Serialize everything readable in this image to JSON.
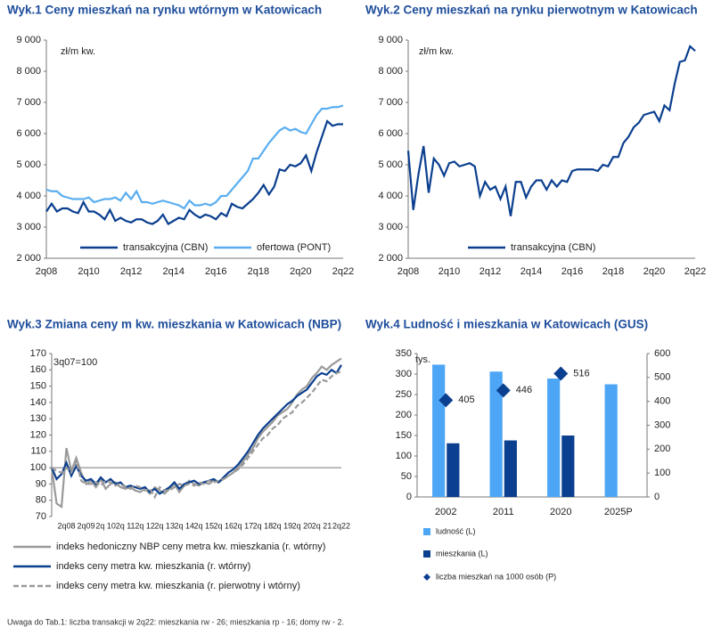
{
  "chart_data": [
    {
      "type": "line",
      "title": "Wyk.1 Ceny mieszkań na rynku wtórnym w Katowicach",
      "annotations": [
        "zł/m kw."
      ],
      "categories": [
        "2q08",
        null,
        null,
        null,
        null,
        null,
        null,
        null,
        "2q10",
        null,
        null,
        null,
        null,
        null,
        null,
        null,
        "2q12",
        null,
        null,
        null,
        null,
        null,
        null,
        null,
        "2q14",
        null,
        null,
        null,
        null,
        null,
        null,
        null,
        "2q16",
        null,
        null,
        null,
        null,
        null,
        null,
        null,
        "2q18",
        null,
        null,
        null,
        null,
        null,
        null,
        null,
        "2q20",
        null,
        null,
        null,
        null,
        null,
        null,
        null,
        "2q22"
      ],
      "series": [
        {
          "name": "transakcyjna (CBN)",
          "color": "#0b3f8f",
          "values": [
            3500,
            3750,
            3500,
            3600,
            3600,
            3500,
            3450,
            3800,
            3500,
            3500,
            3400,
            3250,
            3550,
            3200,
            3300,
            3200,
            3150,
            3250,
            3250,
            3150,
            3100,
            3200,
            3400,
            3100,
            3200,
            3300,
            3250,
            3550,
            3400,
            3300,
            3400,
            3350,
            3250,
            3450,
            3350,
            3750,
            3650,
            3600,
            3750,
            3900,
            4100,
            4350,
            4050,
            4300,
            4850,
            4800,
            5000,
            4950,
            5050,
            5300,
            4800,
            5400,
            5900,
            6400,
            6250,
            6300,
            6300
          ]
        },
        {
          "name": "ofertowa (PONT)",
          "color": "#5aaef0",
          "values": [
            4200,
            4150,
            4150,
            4000,
            3950,
            3900,
            3900,
            3900,
            3950,
            3800,
            3850,
            3900,
            3900,
            3950,
            3850,
            4100,
            3900,
            4150,
            3800,
            3800,
            3750,
            3800,
            3850,
            3800,
            3750,
            3700,
            3600,
            3850,
            3700,
            3700,
            3750,
            3700,
            3800,
            4000,
            4000,
            4200,
            4400,
            4600,
            4800,
            5200,
            5200,
            5450,
            5700,
            5900,
            6100,
            6200,
            6100,
            6150,
            6050,
            6000,
            6300,
            6600,
            6800,
            6800,
            6850,
            6850,
            6900
          ]
        }
      ],
      "ylim": [
        2000,
        9000
      ],
      "yticks": [
        {
          "value": 2000,
          "label": "2 000"
        },
        {
          "value": 3000,
          "label": "3 000"
        },
        {
          "value": 4000,
          "label": "4 000"
        },
        {
          "value": 5000,
          "label": "5 000"
        },
        {
          "value": 6000,
          "label": "6 000"
        },
        {
          "value": 7000,
          "label": "7 000"
        },
        {
          "value": 8000,
          "label": "8 000"
        },
        {
          "value": 9000,
          "label": "9 000"
        }
      ],
      "grid": false,
      "legend": "lower center"
    },
    {
      "type": "line",
      "title": "Wyk.2 Ceny mieszkań na rynku pierwotnym w Katowicach",
      "annotations": [
        "zł/m kw."
      ],
      "categories": [
        "2q08",
        null,
        null,
        null,
        null,
        null,
        null,
        null,
        "2q10",
        null,
        null,
        null,
        null,
        null,
        null,
        null,
        "2q12",
        null,
        null,
        null,
        null,
        null,
        null,
        null,
        "2q14",
        null,
        null,
        null,
        null,
        null,
        null,
        null,
        "2q16",
        null,
        null,
        null,
        null,
        null,
        null,
        null,
        "2q18",
        null,
        null,
        null,
        null,
        null,
        null,
        null,
        "2q20",
        null,
        null,
        null,
        null,
        null,
        null,
        null,
        "2q22"
      ],
      "series": [
        {
          "name": "transakcyjna (CBN)",
          "color": "#0b3f8f",
          "values": [
            5450,
            3550,
            4700,
            5600,
            4100,
            5200,
            5000,
            4650,
            5050,
            5100,
            4950,
            5000,
            5050,
            4950,
            4000,
            4450,
            4200,
            4300,
            3900,
            4300,
            3350,
            4450,
            4450,
            3950,
            4300,
            4500,
            4500,
            4200,
            4500,
            4300,
            4500,
            4450,
            4800,
            4850,
            4850,
            4850,
            4850,
            4800,
            5000,
            4950,
            5250,
            5250,
            5700,
            5900,
            6200,
            6350,
            6600,
            6650,
            6700,
            6400,
            6900,
            6750,
            7600,
            8300,
            8350,
            8800,
            8650
          ]
        }
      ],
      "ylim": [
        2000,
        9000
      ],
      "yticks": [
        {
          "value": 2000,
          "label": "2 000"
        },
        {
          "value": 3000,
          "label": "3 000"
        },
        {
          "value": 4000,
          "label": "4 000"
        },
        {
          "value": 5000,
          "label": "5 000"
        },
        {
          "value": 6000,
          "label": "6 000"
        },
        {
          "value": 7000,
          "label": "7 000"
        },
        {
          "value": 8000,
          "label": "8 000"
        },
        {
          "value": 9000,
          "label": "9 000"
        }
      ],
      "grid": false,
      "legend": "lower center"
    },
    {
      "type": "line",
      "title": "Wyk.3 Zmiana ceny m kw. mieszkania w Katowicach (NBP)",
      "annotations": [
        "3q07=100"
      ],
      "categories": [
        null,
        null,
        null,
        "2q08",
        null,
        null,
        null,
        "2q09",
        null,
        null,
        null,
        "2q 10",
        null,
        null,
        null,
        "2q 11",
        null,
        null,
        null,
        "2q 12",
        null,
        null,
        null,
        "2q 13",
        null,
        null,
        null,
        "2q 14",
        null,
        null,
        null,
        "2q 15",
        null,
        null,
        null,
        "2q 16",
        null,
        null,
        null,
        "2q 17",
        null,
        null,
        null,
        "2q 18",
        null,
        null,
        null,
        "2q 19",
        null,
        null,
        null,
        "2q 20",
        null,
        null,
        null,
        "2q 21",
        null,
        null,
        null,
        "2q22"
      ],
      "series": [
        {
          "name": "indeks hedoniczny NBP ceny metra kw. mieszkania (r. wtórny)",
          "color": "#9a9a9a",
          "style": "solid",
          "values": [
            100,
            78,
            76,
            112,
            98,
            106,
            97,
            90,
            92,
            88,
            93,
            87,
            90,
            91,
            88,
            87,
            88,
            86,
            85,
            87,
            84,
            88,
            86,
            84,
            87,
            90,
            85,
            89,
            92,
            90,
            89,
            91,
            90,
            92,
            91,
            93,
            95,
            97,
            100,
            104,
            108,
            112,
            118,
            122,
            125,
            128,
            132,
            134,
            136,
            140,
            145,
            148,
            150,
            155,
            158,
            162,
            160,
            163,
            165,
            167
          ]
        },
        {
          "name": "indeks ceny metra kw. mieszkania (r. wtórny)",
          "color": "#0b3f8f",
          "style": "solid",
          "values": [
            100,
            93,
            96,
            103,
            95,
            101,
            95,
            92,
            93,
            90,
            94,
            91,
            93,
            90,
            91,
            88,
            89,
            88,
            87,
            88,
            85,
            87,
            84,
            86,
            88,
            91,
            87,
            90,
            91,
            92,
            90,
            91,
            92,
            93,
            91,
            94,
            97,
            99,
            102,
            106,
            110,
            115,
            120,
            124,
            127,
            130,
            133,
            136,
            139,
            141,
            144,
            146,
            148,
            152,
            156,
            158,
            157,
            160,
            158,
            163
          ]
        },
        {
          "name": "indeks ceny metra kw. mieszkania (r. pierwotny i wtórny)",
          "color": "#9a9a9a",
          "style": "dashed",
          "values": [
            100,
            98,
            97,
            100,
            97,
            104,
            92,
            90,
            90,
            91,
            89,
            92,
            91,
            89,
            90,
            88,
            87,
            89,
            88,
            86,
            87,
            82,
            88,
            86,
            86,
            88,
            90,
            89,
            90,
            89,
            91,
            90,
            92,
            91,
            92,
            93,
            95,
            97,
            99,
            102,
            106,
            110,
            114,
            118,
            120,
            124,
            126,
            130,
            132,
            134,
            138,
            140,
            143,
            146,
            150,
            154,
            153,
            156,
            158,
            159
          ]
        }
      ],
      "ylim": [
        70,
        170
      ],
      "yticks": [
        70,
        80,
        90,
        100,
        110,
        120,
        130,
        140,
        150,
        160,
        170
      ],
      "grid": false,
      "legend": "below"
    },
    {
      "type": "bar",
      "title": "Wyk.4 Ludność i mieszkania w Katowicach (GUS)",
      "annotations": [
        "tys."
      ],
      "categories": [
        "2002",
        "2011",
        "2020",
        "2025P"
      ],
      "series": [
        {
          "name": "ludność (L)",
          "color": "#4da6f5",
          "values": [
            323,
            306,
            289,
            275
          ]
        },
        {
          "name": "mieszkania (L)",
          "color": "#0b3f8f",
          "values": [
            131,
            138,
            150,
            null
          ]
        },
        {
          "name": "liczba mieszkań na 1000 osób (P)",
          "color": "#0b3f8f",
          "axis": "y2",
          "marker": "diamond",
          "values": [
            405,
            446,
            516,
            null
          ]
        }
      ],
      "ylim": [
        0,
        350
      ],
      "yticks": [
        0,
        50,
        100,
        150,
        200,
        250,
        300,
        350
      ],
      "y2lim": [
        0,
        600
      ],
      "y2ticks": [
        0,
        100,
        200,
        300,
        400,
        500,
        600
      ],
      "grid": false,
      "legend": "below"
    }
  ],
  "footnote": "Uwaga do Tab.1: liczba transakcji w 2q22: mieszkania rw - 26; mieszkania rp - 16; domy rw - 2."
}
